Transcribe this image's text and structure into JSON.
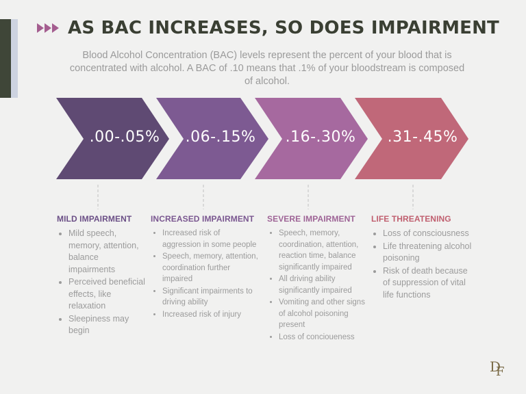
{
  "header": {
    "title": "AS BAC INCREASES, SO DOES IMPAIRMENT",
    "subtitle": "Blood Alcohol Concentration (BAC) levels represent the percent of your blood that is concentrated with alcohol. A BAC of .10 means that .1% of your bloodstream is composed of alcohol."
  },
  "levels": [
    {
      "range": ".00-.05%",
      "heading": "MILD IMPAIRMENT",
      "color": "#5f4a73",
      "heading_color": "#6b4f86",
      "items": [
        "Mild speech, memory, attention, balance impairments",
        "Perceived beneficial effects, like relaxation",
        "Sleepiness may begin"
      ]
    },
    {
      "range": ".06-.15%",
      "heading": "INCREASED IMPAIRMENT",
      "color": "#7d5a92",
      "heading_color": "#7a5790",
      "items": [
        "Increased risk of aggression in some people",
        "Speech, memory, attention, coordination further impaired",
        "Significant impairments to driving ability",
        "Increased risk of injury"
      ]
    },
    {
      "range": ".16-.30%",
      "heading": "SEVERE IMPAIRMENT",
      "color": "#a6699f",
      "heading_color": "#9e6496",
      "items": [
        "Speech, memory, coordination, attention, reaction time, balance significantly impaired",
        "All driving ability significantly impaired",
        "Vomiting and other signs of alcohol poisoning present",
        "Loss of concioueness"
      ]
    },
    {
      "range": ".31-.45%",
      "heading": "LIFE THREATENING",
      "color": "#c06879",
      "heading_color": "#c05f6f",
      "items": [
        "Loss of consciousness",
        "Life threatening alcohol poisoning",
        "Risk of death because of suppression of vital life functions"
      ]
    }
  ],
  "logo": {
    "text": "DF"
  }
}
